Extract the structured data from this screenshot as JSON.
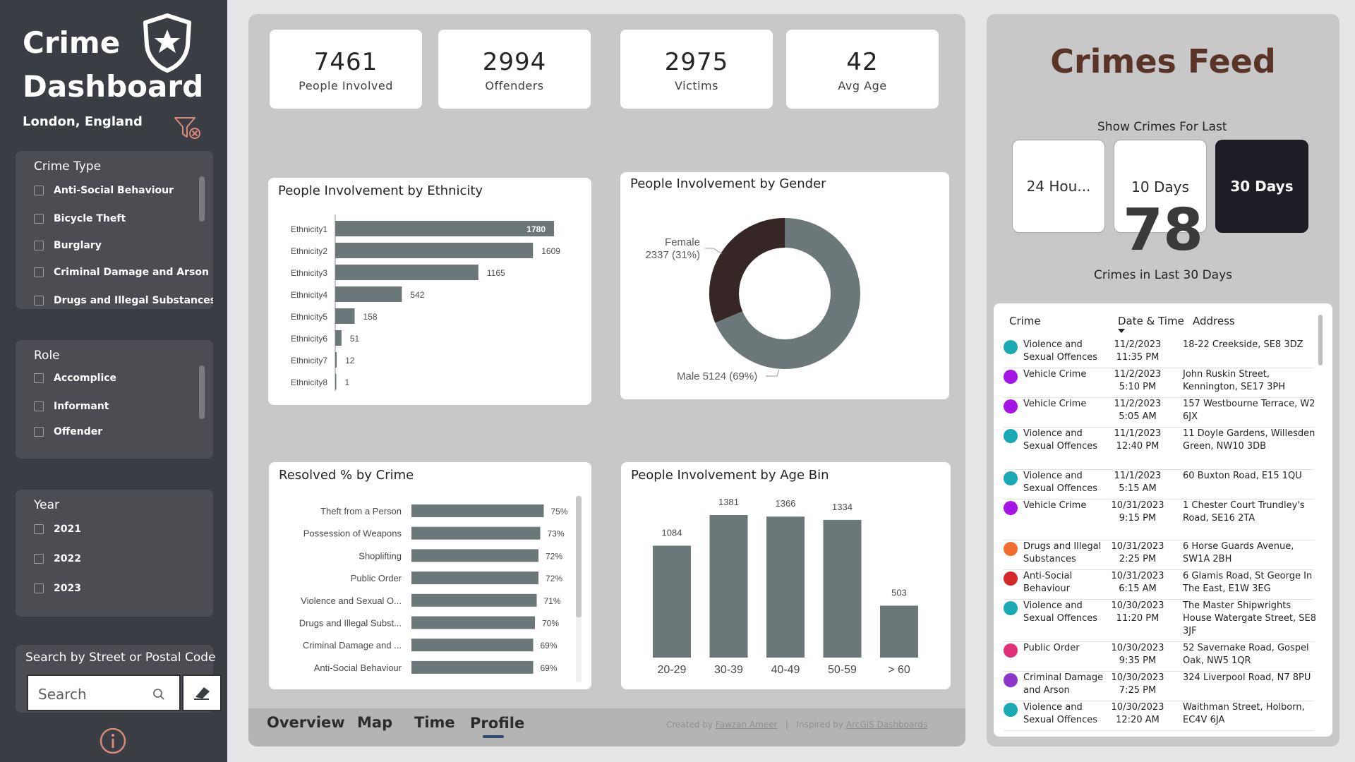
{
  "sidebar": {
    "title_line1": "Crime",
    "title_line2": "Dashboard",
    "location": "London, England",
    "crime_type": {
      "title": "Crime Type",
      "items": [
        "Anti-Social Behaviour",
        "Bicycle Theft",
        "Burglary",
        "Criminal Damage and Arson",
        "Drugs and Illegal Substances"
      ]
    },
    "role": {
      "title": "Role",
      "items": [
        "Accomplice",
        "Informant",
        "Offender"
      ]
    },
    "year": {
      "title": "Year",
      "items": [
        "2021",
        "2022",
        "2023"
      ]
    },
    "search": {
      "label": "Search by Street or Postal Code",
      "placeholder": "Search"
    }
  },
  "kpis": [
    {
      "value": "7461",
      "label": "People Involved"
    },
    {
      "value": "2994",
      "label": "Offenders"
    },
    {
      "value": "2975",
      "label": "Victims"
    },
    {
      "value": "42",
      "label": "Avg Age"
    }
  ],
  "chart_data": [
    {
      "type": "bar",
      "orientation": "horizontal",
      "title": "People Involvement by Ethnicity",
      "categories": [
        "Ethnicity1",
        "Ethnicity2",
        "Ethnicity3",
        "Ethnicity4",
        "Ethnicity5",
        "Ethnicity6",
        "Ethnicity7",
        "Ethnicity8"
      ],
      "values": [
        1780,
        1609,
        1165,
        542,
        158,
        51,
        12,
        1
      ],
      "color": "#6b7778"
    },
    {
      "type": "pie",
      "donut": true,
      "title": "People Involvement by Gender",
      "labels": [
        "Male",
        "Female"
      ],
      "values": [
        5124,
        2337
      ],
      "percent_labels": [
        "5124 (69%)",
        "2337 (31%)"
      ],
      "colors": [
        "#6b7778",
        "#362626"
      ]
    },
    {
      "type": "bar",
      "orientation": "horizontal",
      "title": "Resolved % by Crime",
      "categories": [
        "Theft from a Person",
        "Possession of Weapons",
        "Shoplifting",
        "Public Order",
        "Violence and Sexual O...",
        "Drugs and Illegal Subst...",
        "Criminal Damage and ...",
        "Anti-Social Behaviour"
      ],
      "values": [
        75,
        73,
        72,
        72,
        71,
        70,
        69,
        69
      ],
      "value_labels": [
        "75%",
        "73%",
        "72%",
        "72%",
        "71%",
        "70%",
        "69%",
        "69%"
      ],
      "unit": "%",
      "color": "#6b7778"
    },
    {
      "type": "bar",
      "title": "People Involvement by Age Bin",
      "categories": [
        "20-29",
        "30-39",
        "40-49",
        "50-59",
        "> 60"
      ],
      "values": [
        1084,
        1381,
        1366,
        1334,
        503
      ],
      "color": "#6b7778"
    }
  ],
  "nav": {
    "tabs": [
      "Overview",
      "Map",
      "Time",
      "Profile"
    ],
    "active": "Profile",
    "credit_created": "Created by",
    "credit_author": "Fawzan Ameer",
    "credit_sep": "|",
    "credit_inspired": "Inspired by",
    "credit_source": "ArcGIS Dashboards"
  },
  "feed": {
    "title": "Crimes Feed",
    "show_label": "Show Crimes For Last",
    "periods": [
      "24 Hou...",
      "10 Days",
      "30 Days"
    ],
    "active_period": "30 Days",
    "count": "78",
    "count_label": "Crimes in Last 30 Days",
    "columns": [
      "Crime",
      "Date & Time",
      "Address"
    ],
    "rows": [
      {
        "crime": "Violence and Sexual Offences",
        "date": "11/2/2023",
        "time": "11:35 PM",
        "address": "18-22 Creekside, SE8 3DZ",
        "color": "#1aa9b3"
      },
      {
        "crime": "Vehicle Crime",
        "date": "11/2/2023",
        "time": "5:10 PM",
        "address": "John Ruskin Street, Kennington, SE17 3PH",
        "color": "#a415e6"
      },
      {
        "crime": "Vehicle Crime",
        "date": "11/2/2023",
        "time": "5:05 AM",
        "address": "157 Westbourne Terrace, W2 6JX",
        "color": "#a415e6"
      },
      {
        "crime": "Violence and Sexual Offences",
        "date": "11/1/2023",
        "time": "12:40 PM",
        "address": "11 Doyle Gardens, Willesden Green, NW10 3DB",
        "color": "#1aa9b3"
      },
      {
        "crime": "Violence and Sexual Offences",
        "date": "11/1/2023",
        "time": "5:15 AM",
        "address": "60 Buxton Road, E15 1QU",
        "color": "#1aa9b3"
      },
      {
        "crime": "Vehicle Crime",
        "date": "10/31/2023",
        "time": "9:15 PM",
        "address": "1 Chester Court Trundley's Road, SE16 2TA",
        "color": "#a415e6"
      },
      {
        "crime": "Drugs and Illegal Substances",
        "date": "10/31/2023",
        "time": "2:25 PM",
        "address": "6 Horse Guards Avenue, SW1A 2BH",
        "color": "#f26c2d"
      },
      {
        "crime": "Anti-Social Behaviour",
        "date": "10/31/2023",
        "time": "6:15 AM",
        "address": "6 Glamis Road, St George In The East, E1W 3EG",
        "color": "#d42828"
      },
      {
        "crime": "Violence and Sexual Offences",
        "date": "10/30/2023",
        "time": "11:20 PM",
        "address": "The Master Shipwrights House Watergate Street, SE8 3JF",
        "color": "#1aa9b3"
      },
      {
        "crime": "Public Order",
        "date": "10/30/2023",
        "time": "9:35 PM",
        "address": "52 Savernake Road, Gospel Oak, NW5 1QR",
        "color": "#e0307a"
      },
      {
        "crime": "Criminal Damage and Arson",
        "date": "10/30/2023",
        "time": "7:25 PM",
        "address": "324 Liverpool Road, N7 8PU",
        "color": "#8e35c9"
      },
      {
        "crime": "Violence and Sexual Offences",
        "date": "10/30/2023",
        "time": "12:20 AM",
        "address": "Waithman Street, Holborn, EC4V 6JA",
        "color": "#1aa9b3"
      }
    ]
  }
}
